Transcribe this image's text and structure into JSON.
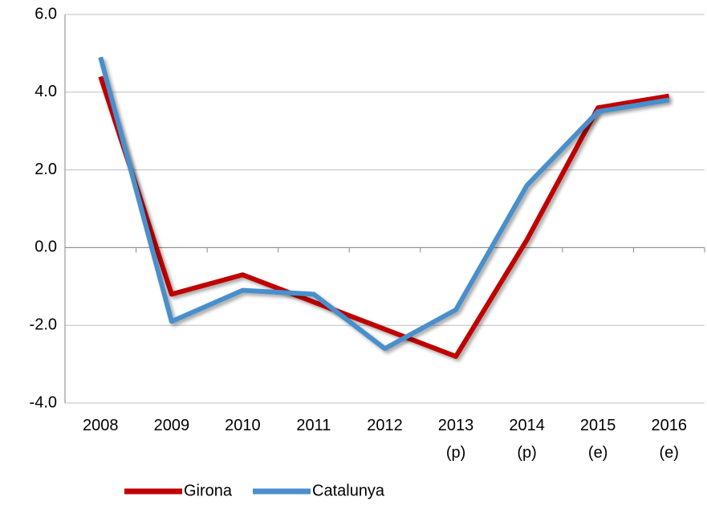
{
  "chart_data": {
    "type": "line",
    "categories": [
      "2008",
      "2009",
      "2010",
      "2011",
      "2012",
      "2013\n(p)",
      "2014\n(p)",
      "2015\n(e)",
      "2016\n(e)"
    ],
    "series": [
      {
        "name": "Girona",
        "color": "#c00000",
        "values": [
          4.4,
          -1.2,
          -0.7,
          -1.4,
          -2.1,
          -2.8,
          0.2,
          3.6,
          3.9
        ]
      },
      {
        "name": "Catalunya",
        "color": "#4a8fcb",
        "values": [
          4.9,
          -1.9,
          -1.1,
          -1.2,
          -2.6,
          -1.6,
          1.6,
          3.5,
          3.8
        ]
      }
    ],
    "ylim": [
      -4,
      6
    ],
    "yticks": [
      {
        "value": -4,
        "label": "-4.0"
      },
      {
        "value": -2,
        "label": "-2.0"
      },
      {
        "value": 0,
        "label": "0.0"
      },
      {
        "value": 2,
        "label": "2.0"
      },
      {
        "value": 4,
        "label": "4.0"
      },
      {
        "value": 6,
        "label": "6.0"
      }
    ],
    "grid": true,
    "legend": "bottom"
  }
}
